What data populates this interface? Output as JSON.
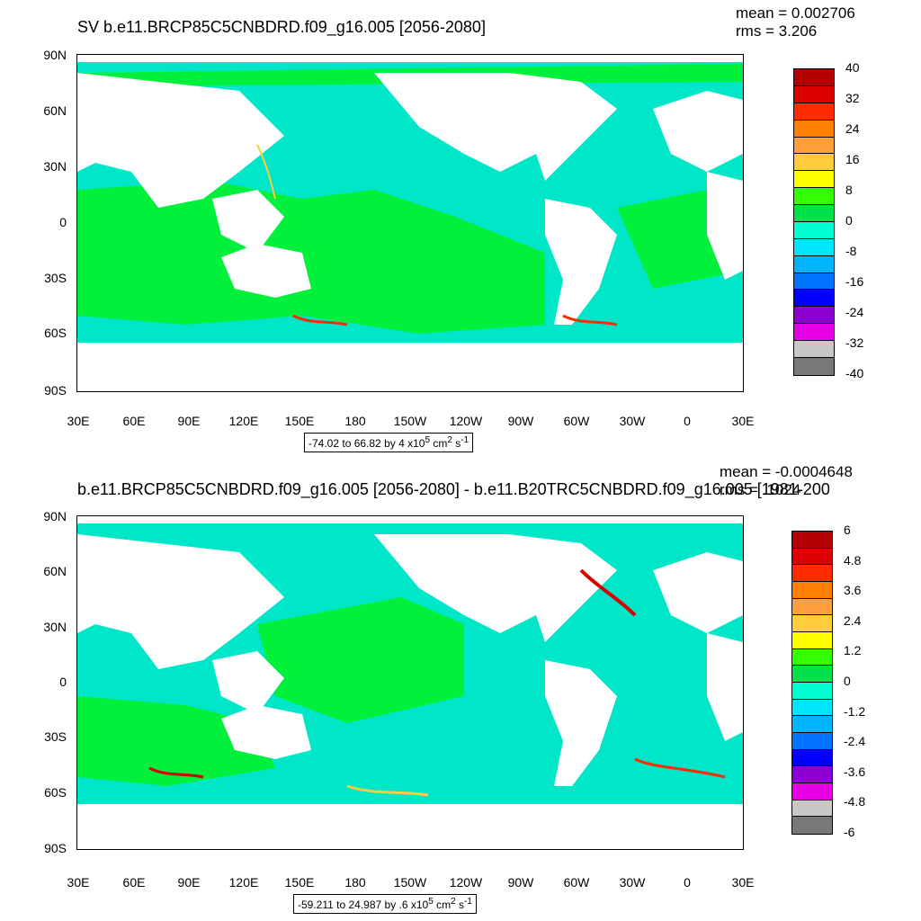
{
  "panels": [
    {
      "title": "SV b.e11.BRCP85C5CNBDRD.f09_g16.005 [2056-2080]",
      "mean": "mean = 0.002706",
      "rms": "rms = 3.206",
      "range_label": "-74.02 to 66.82 by 4 x10",
      "range_exp": "5",
      "range_units": " cm",
      "range_units_exp": "2",
      "range_s": " s",
      "range_s_exp": "-1",
      "colorbar_labels": [
        "40",
        "32",
        "24",
        "16",
        "8",
        "0",
        "-8",
        "-16",
        "-24",
        "-32",
        "-40"
      ],
      "colorbar_colors": [
        "#b40000",
        "#dc0000",
        "#ff2a00",
        "#ff7f00",
        "#ff9f3c",
        "#ffcc3c",
        "#ffff00",
        "#32ff00",
        "#00e14b",
        "#00ffd2",
        "#00e6ff",
        "#00b4ff",
        "#0073ff",
        "#0000ff",
        "#8c00d2",
        "#e600e6",
        "#c8c8c8",
        "#787878"
      ]
    },
    {
      "title": "b.e11.BRCP85C5CNBDRD.f09_g16.005 [2056-2080] - b.e11.B20TRC5CNBDRD.f09_g16.005 [1981-200",
      "mean": "mean = -0.0004648",
      "rms": "rms = .1024",
      "range_label": "-59.211 to 24.987 by .6 x10",
      "range_exp": "5",
      "range_units": " cm",
      "range_units_exp": "2",
      "range_s": " s",
      "range_s_exp": "-1",
      "colorbar_labels": [
        "6",
        "4.8",
        "3.6",
        "2.4",
        "1.2",
        "0",
        "-1.2",
        "-2.4",
        "-3.6",
        "-4.8",
        "-6"
      ],
      "colorbar_colors": [
        "#b40000",
        "#dc0000",
        "#ff2a00",
        "#ff7f00",
        "#ff9f3c",
        "#ffcc3c",
        "#ffff00",
        "#32ff00",
        "#00e14b",
        "#00ffd2",
        "#00e6ff",
        "#00b4ff",
        "#0073ff",
        "#0000ff",
        "#8c00d2",
        "#e600e6",
        "#c8c8c8",
        "#787878"
      ]
    }
  ],
  "lat_labels": [
    "90N",
    "60N",
    "30N",
    "0",
    "30S",
    "60S",
    "90S"
  ],
  "lon_labels": [
    "30E",
    "60E",
    "90E",
    "120E",
    "150E",
    "180",
    "150W",
    "120W",
    "90W",
    "60W",
    "30W",
    "0",
    "30E"
  ],
  "colors": {
    "ocean_main": "#00e6c8",
    "ocean_green": "#00f03c",
    "land": "#ffffff"
  }
}
